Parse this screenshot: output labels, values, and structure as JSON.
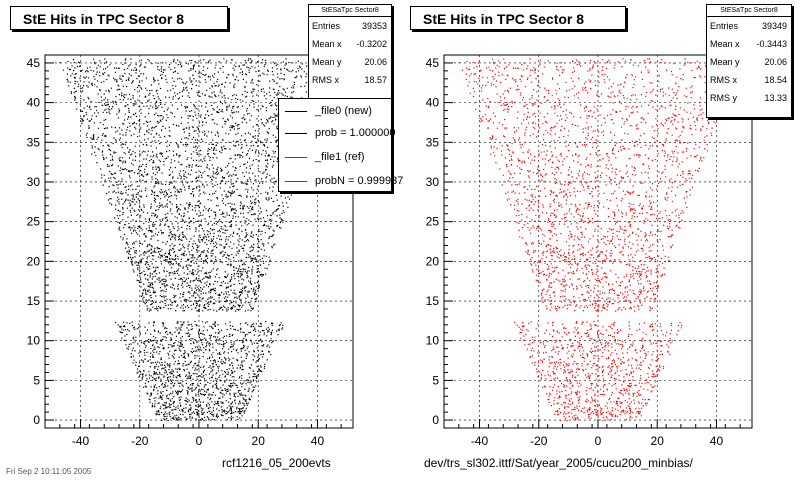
{
  "chart_data": [
    {
      "type": "scatter",
      "title": "StE Hits in TPC Sector 8",
      "xlim": [
        -52,
        52
      ],
      "ylim": [
        -1,
        46
      ],
      "x_ticks": [
        -40,
        -20,
        0,
        20,
        40
      ],
      "y_ticks": [
        0,
        5,
        10,
        15,
        20,
        25,
        30,
        35,
        40,
        45
      ],
      "grid": true,
      "point_color": "#000000",
      "stats": {
        "header": "StESaTpc Sector8",
        "rows": [
          {
            "label": "Entries",
            "value": "39353"
          },
          {
            "label": "Mean x",
            "value": "-0.3202"
          },
          {
            "label": "Mean y",
            "value": "20.06"
          },
          {
            "label": "RMS x",
            "value": "18.57"
          }
        ]
      },
      "legend": [
        {
          "label": "_file0 (new)",
          "color": "#000000"
        },
        {
          "label": "prob = 1.000000",
          "color": "#000000"
        },
        {
          "label": "_file1 (ref)",
          "color": "#ff0000"
        },
        {
          "label": "probN = 0.999937",
          "color": "#ff0000"
        }
      ],
      "caption": "rcf1216_05_200evts"
    },
    {
      "type": "scatter",
      "title": "StE Hits in TPC Sector 8",
      "xlim": [
        -52,
        52
      ],
      "ylim": [
        -1,
        46
      ],
      "x_ticks": [
        -40,
        -20,
        0,
        20,
        40
      ],
      "y_ticks": [
        0,
        5,
        10,
        15,
        20,
        25,
        30,
        35,
        40,
        45
      ],
      "grid": true,
      "point_color": "#ff0000",
      "stats": {
        "header": "StESaTpc Sector8",
        "rows": [
          {
            "label": "Entries",
            "value": "39349"
          },
          {
            "label": "Mean x",
            "value": "-0.3443"
          },
          {
            "label": "Mean y",
            "value": "20.06"
          },
          {
            "label": "RMS x",
            "value": "18.54"
          },
          {
            "label": "RMS y",
            "value": "13.33"
          }
        ]
      },
      "caption": "dev/trs_sl302.ittf/Sat/year_2005/cucu200_minbias/"
    }
  ],
  "footnote": "Fri Sep 2 10:11:05 2005"
}
